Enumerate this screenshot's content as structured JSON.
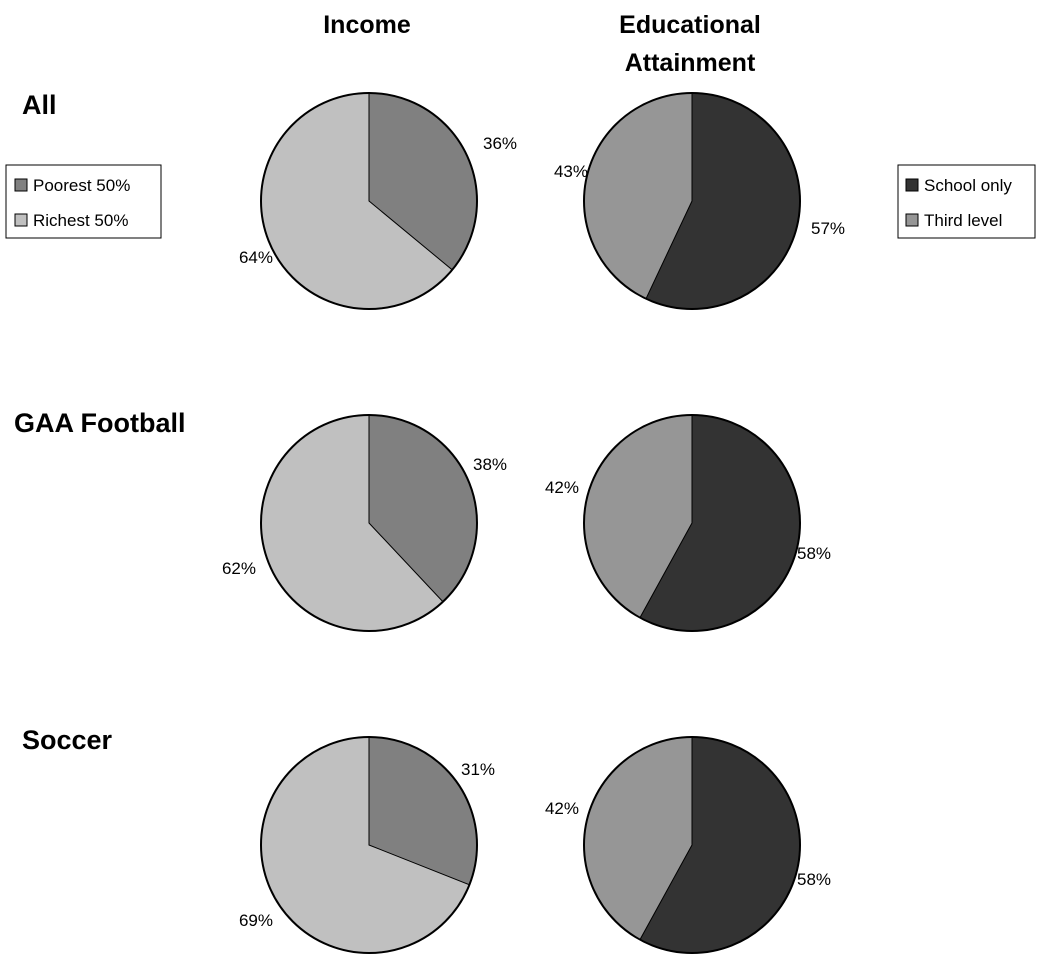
{
  "chart_data": {
    "type": "pie",
    "column_titles": [
      [
        "Income"
      ],
      [
        "Educational",
        "Attainment"
      ]
    ],
    "row_labels": [
      "All",
      "GAA Football",
      "Soccer"
    ],
    "legends": [
      {
        "entries": [
          {
            "label": "Poorest 50%",
            "color": "#808080"
          },
          {
            "label": "Richest 50%",
            "color": "#c0c0c0"
          }
        ]
      },
      {
        "entries": [
          {
            "label": "School only",
            "color": "#333333"
          },
          {
            "label": "Third level",
            "color": "#969696"
          }
        ]
      }
    ],
    "pies": [
      {
        "row": "All",
        "column": "Income",
        "slices": [
          {
            "label": "Poorest 50%",
            "value": 36,
            "text": "36%",
            "color": "#808080"
          },
          {
            "label": "Richest 50%",
            "value": 64,
            "text": "64%",
            "color": "#c0c0c0"
          }
        ]
      },
      {
        "row": "All",
        "column": "Educational Attainment",
        "slices": [
          {
            "label": "School only",
            "value": 57,
            "text": "57%",
            "color": "#333333"
          },
          {
            "label": "Third level",
            "value": 43,
            "text": "43%",
            "color": "#969696"
          }
        ]
      },
      {
        "row": "GAA Football",
        "column": "Income",
        "slices": [
          {
            "label": "Poorest 50%",
            "value": 38,
            "text": "38%",
            "color": "#808080"
          },
          {
            "label": "Richest 50%",
            "value": 62,
            "text": "62%",
            "color": "#c0c0c0"
          }
        ]
      },
      {
        "row": "GAA Football",
        "column": "Educational Attainment",
        "slices": [
          {
            "label": "School only",
            "value": 58,
            "text": "58%",
            "color": "#333333"
          },
          {
            "label": "Third level",
            "value": 42,
            "text": "42%",
            "color": "#969696"
          }
        ]
      },
      {
        "row": "Soccer",
        "column": "Income",
        "slices": [
          {
            "label": "Poorest 50%",
            "value": 31,
            "text": "31%",
            "color": "#808080"
          },
          {
            "label": "Richest 50%",
            "value": 69,
            "text": "69%",
            "color": "#c0c0c0"
          }
        ]
      },
      {
        "row": "Soccer",
        "column": "Educational Attainment",
        "slices": [
          {
            "label": "School only",
            "value": 58,
            "text": "58%",
            "color": "#333333"
          },
          {
            "label": "Third level",
            "value": 42,
            "text": "42%",
            "color": "#969696"
          }
        ]
      }
    ]
  }
}
